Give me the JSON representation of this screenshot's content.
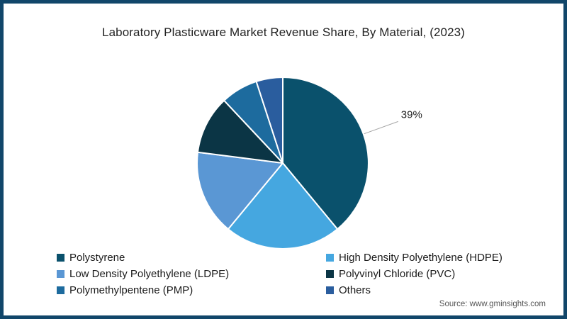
{
  "page": {
    "source": "Source: www.gminsights.com",
    "border_color": "#11466a",
    "background": "#ffffff"
  },
  "chart_data": {
    "type": "pie",
    "title": "Laboratory Plasticware Market Revenue Share, By Material, (2023)",
    "unit": "%",
    "start_angle_deg": 0,
    "clockwise": true,
    "legend_position": "bottom",
    "labels": [
      "Polystyrene",
      "High Density Polyethylene (HDPE)",
      "Low Density Polyethylene (LDPE)",
      "Polyvinyl Chloride (PVC)",
      "Polymethylpentene (PMP)",
      "Others"
    ],
    "values": [
      39,
      22,
      16,
      11,
      7,
      5
    ],
    "colors": [
      "#0a516c",
      "#45a7e0",
      "#5a97d4",
      "#0b3545",
      "#1d6b9e",
      "#2a5d9e"
    ],
    "callout": {
      "slice_index": 0,
      "text": "39%",
      "line_color": "#a6a6a6",
      "text_color": "#222222"
    }
  }
}
